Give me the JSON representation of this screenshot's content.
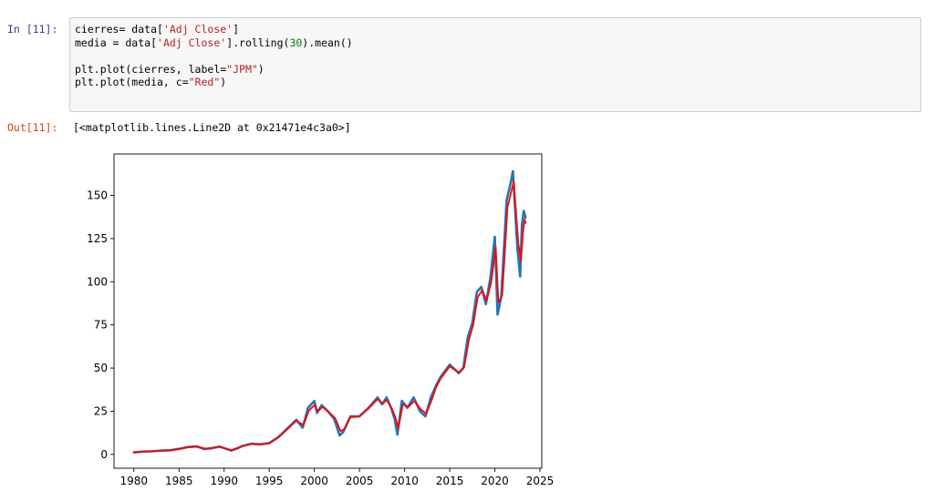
{
  "cell_in": {
    "prompt": "In [11]:",
    "code_lines": [
      [
        {
          "t": "cierres= data["
        },
        {
          "t": "'Adj Close'",
          "k": "str"
        },
        {
          "t": "]"
        }
      ],
      [
        {
          "t": "media = data["
        },
        {
          "t": "'Adj Close'",
          "k": "str"
        },
        {
          "t": "].rolling("
        },
        {
          "t": "30",
          "k": "num"
        },
        {
          "t": ").mean()"
        }
      ],
      [],
      [
        {
          "t": "plt.plot(cierres, label="
        },
        {
          "t": "\"JPM\"",
          "k": "str"
        },
        {
          "t": ")"
        }
      ],
      [
        {
          "t": "plt.plot(media, c="
        },
        {
          "t": "\"Red\"",
          "k": "str"
        },
        {
          "t": ")"
        }
      ]
    ]
  },
  "cell_out": {
    "prompt": "Out[11]:",
    "text": "[<matplotlib.lines.Line2D at 0x21471e4c3a0>]"
  },
  "chart_data": {
    "type": "line",
    "xlim": [
      1977.8,
      2025.2
    ],
    "ylim": [
      -8,
      174
    ],
    "x_ticks": [
      1980,
      1985,
      1990,
      1995,
      2000,
      2005,
      2010,
      2015,
      2020,
      2025
    ],
    "y_ticks": [
      0,
      25,
      50,
      75,
      100,
      125,
      150
    ],
    "grid": false,
    "series": [
      {
        "color": "#1f77b4",
        "points": [
          [
            1980.0,
            1.2
          ],
          [
            1981.0,
            1.6
          ],
          [
            1982.0,
            1.8
          ],
          [
            1983.0,
            2.2
          ],
          [
            1984.0,
            2.4
          ],
          [
            1985.0,
            3.2
          ],
          [
            1986.0,
            4.3
          ],
          [
            1987.0,
            4.6
          ],
          [
            1987.8,
            3.1
          ],
          [
            1988.5,
            3.5
          ],
          [
            1989.5,
            4.5
          ],
          [
            1990.8,
            2.2
          ],
          [
            1991.5,
            3.6
          ],
          [
            1992.0,
            4.8
          ],
          [
            1993.0,
            6.2
          ],
          [
            1994.0,
            5.8
          ],
          [
            1995.0,
            6.5
          ],
          [
            1996.0,
            10.0
          ],
          [
            1997.0,
            15.0
          ],
          [
            1998.0,
            20.0
          ],
          [
            1998.7,
            15.5
          ],
          [
            1999.3,
            27.0
          ],
          [
            2000.0,
            31.0
          ],
          [
            2000.3,
            24.0
          ],
          [
            2000.8,
            28.5
          ],
          [
            2001.5,
            25.0
          ],
          [
            2002.2,
            20.5
          ],
          [
            2002.8,
            11.0
          ],
          [
            2003.2,
            13.0
          ],
          [
            2004.0,
            22.0
          ],
          [
            2005.0,
            22.0
          ],
          [
            2006.0,
            27.0
          ],
          [
            2007.0,
            33.0
          ],
          [
            2007.5,
            29.0
          ],
          [
            2008.0,
            33.0
          ],
          [
            2008.5,
            27.0
          ],
          [
            2008.9,
            20.5
          ],
          [
            2009.2,
            11.5
          ],
          [
            2009.7,
            31.0
          ],
          [
            2010.3,
            27.0
          ],
          [
            2011.0,
            33.0
          ],
          [
            2011.7,
            25.0
          ],
          [
            2012.3,
            22.0
          ],
          [
            2012.9,
            33.0
          ],
          [
            2013.5,
            40.0
          ],
          [
            2014.0,
            45.0
          ],
          [
            2015.0,
            52.0
          ],
          [
            2016.0,
            47.0
          ],
          [
            2016.5,
            50.0
          ],
          [
            2017.0,
            68.0
          ],
          [
            2017.5,
            76.0
          ],
          [
            2018.0,
            94.0
          ],
          [
            2018.5,
            97.0
          ],
          [
            2019.0,
            87.0
          ],
          [
            2019.5,
            102.0
          ],
          [
            2020.0,
            126.0
          ],
          [
            2020.3,
            81.0
          ],
          [
            2020.7,
            91.0
          ],
          [
            2021.0,
            118.0
          ],
          [
            2021.3,
            147.0
          ],
          [
            2021.7,
            156.0
          ],
          [
            2022.0,
            164.0
          ],
          [
            2022.5,
            119.0
          ],
          [
            2022.8,
            103.0
          ],
          [
            2023.0,
            133.0
          ],
          [
            2023.2,
            141.0
          ],
          [
            2023.4,
            137.0
          ]
        ]
      },
      {
        "color": "#ff0000",
        "points": [
          [
            1980.0,
            1.2
          ],
          [
            1981.0,
            1.6
          ],
          [
            1982.0,
            1.8
          ],
          [
            1983.0,
            2.2
          ],
          [
            1984.0,
            2.4
          ],
          [
            1985.0,
            3.1
          ],
          [
            1986.0,
            4.1
          ],
          [
            1987.0,
            4.5
          ],
          [
            1987.9,
            3.4
          ],
          [
            1988.5,
            3.5
          ],
          [
            1989.5,
            4.4
          ],
          [
            1990.8,
            2.5
          ],
          [
            1991.5,
            3.6
          ],
          [
            1992.0,
            4.7
          ],
          [
            1993.0,
            6.0
          ],
          [
            1994.0,
            5.8
          ],
          [
            1995.0,
            6.4
          ],
          [
            1996.0,
            9.8
          ],
          [
            1997.0,
            14.5
          ],
          [
            1998.0,
            19.5
          ],
          [
            1998.8,
            17.0
          ],
          [
            1999.4,
            25.5
          ],
          [
            2000.0,
            28.5
          ],
          [
            2000.4,
            25.0
          ],
          [
            2000.9,
            27.5
          ],
          [
            2001.6,
            24.5
          ],
          [
            2002.3,
            21.0
          ],
          [
            2002.9,
            13.5
          ],
          [
            2003.3,
            14.5
          ],
          [
            2004.0,
            21.5
          ],
          [
            2005.0,
            22.0
          ],
          [
            2006.0,
            26.5
          ],
          [
            2007.0,
            32.0
          ],
          [
            2007.6,
            29.5
          ],
          [
            2008.0,
            31.5
          ],
          [
            2008.6,
            26.5
          ],
          [
            2009.0,
            21.0
          ],
          [
            2009.3,
            15.0
          ],
          [
            2009.8,
            29.0
          ],
          [
            2010.4,
            27.5
          ],
          [
            2011.1,
            31.0
          ],
          [
            2011.8,
            26.0
          ],
          [
            2012.4,
            23.5
          ],
          [
            2013.0,
            31.5
          ],
          [
            2013.5,
            39.0
          ],
          [
            2014.0,
            44.0
          ],
          [
            2015.0,
            51.0
          ],
          [
            2016.0,
            47.5
          ],
          [
            2016.6,
            50.5
          ],
          [
            2017.1,
            66.0
          ],
          [
            2017.6,
            75.0
          ],
          [
            2018.1,
            91.0
          ],
          [
            2018.6,
            95.0
          ],
          [
            2019.1,
            89.0
          ],
          [
            2019.6,
            100.0
          ],
          [
            2020.1,
            120.0
          ],
          [
            2020.4,
            88.0
          ],
          [
            2020.8,
            92.0
          ],
          [
            2021.1,
            116.0
          ],
          [
            2021.4,
            143.0
          ],
          [
            2021.8,
            152.0
          ],
          [
            2022.1,
            158.0
          ],
          [
            2022.6,
            122.0
          ],
          [
            2022.9,
            112.0
          ],
          [
            2023.1,
            128.0
          ],
          [
            2023.3,
            136.0
          ],
          [
            2023.4,
            134.0
          ]
        ]
      }
    ]
  }
}
